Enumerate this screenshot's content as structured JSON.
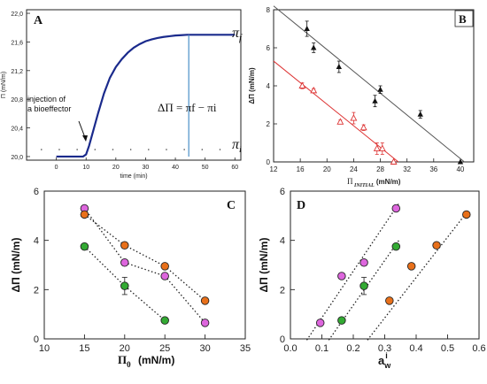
{
  "chart_data": [
    {
      "panel": "A",
      "type": "line",
      "xlabel": "time (min)",
      "ylabel": "Π (mN/m)",
      "xlim": [
        -10,
        62
      ],
      "ylim": [
        19.95,
        22.05
      ],
      "x_ticks": [
        0,
        10,
        20,
        30,
        40,
        50,
        60
      ],
      "y_ticks": [
        "20,0",
        "20,4",
        "20,8",
        "21,2",
        "21,6",
        "22,0"
      ],
      "y_tick_values": [
        20.0,
        20.4,
        20.8,
        21.2,
        21.6,
        22.0
      ],
      "series": [
        {
          "color": "#1a2a8c",
          "x": [
            0,
            5,
            9,
            10,
            11,
            12,
            14,
            16,
            18,
            20,
            22,
            24,
            26,
            28,
            30,
            32,
            34,
            36,
            38,
            40,
            42,
            44,
            46,
            50,
            55,
            60
          ],
          "y": [
            20.0,
            20.0,
            20.0,
            20.03,
            20.15,
            20.3,
            20.6,
            20.88,
            21.1,
            21.25,
            21.36,
            21.45,
            21.52,
            21.57,
            21.61,
            21.635,
            21.655,
            21.67,
            21.68,
            21.69,
            21.695,
            21.7,
            21.7,
            21.7,
            21.7,
            21.7
          ]
        }
      ],
      "vline_x": 44.5,
      "vline_color": "#4a90c8",
      "annotations": {
        "injection": "injection of\na bioeffector",
        "equation": "ΔΠ = π_f − π_i",
        "pi_f": "π_f",
        "pi_i": "π_i"
      }
    },
    {
      "panel": "B",
      "type": "scatter",
      "xlabel": "Π_INITIAL (mN/m)",
      "ylabel": "ΔΠ (mN/m)",
      "xlim": [
        12,
        42
      ],
      "ylim": [
        0,
        8
      ],
      "x_ticks": [
        12,
        16,
        20,
        24,
        28,
        32,
        36,
        40
      ],
      "y_ticks": [
        0,
        2,
        4,
        6,
        8
      ],
      "series": [
        {
          "color": "#111111",
          "marker": "triangle-filled",
          "x": [
            17,
            18,
            21.8,
            27.2,
            28,
            34,
            40
          ],
          "y": [
            7.0,
            6.0,
            5.0,
            3.2,
            3.8,
            2.5,
            0.0
          ],
          "err": [
            0.4,
            0.25,
            0.3,
            0.3,
            0.2,
            0.2,
            0.0
          ],
          "fit": [
            [
              12,
              8.2
            ],
            [
              40.6,
              0.0
            ]
          ],
          "fit_color": "#555555"
        },
        {
          "color": "#dd3333",
          "marker": "triangle-open",
          "x": [
            16.3,
            18,
            22,
            24,
            25.5,
            27.5,
            28.3,
            30
          ],
          "y": [
            4.0,
            3.75,
            2.1,
            2.3,
            1.8,
            0.7,
            0.7,
            0.0
          ],
          "err": [
            0.15,
            0.1,
            0.1,
            0.3,
            0.15,
            0.3,
            0.3,
            0.0
          ],
          "fit": [
            [
              12,
              5.3
            ],
            [
              30.7,
              0.0
            ]
          ],
          "fit_color": "#dd3333"
        }
      ]
    },
    {
      "panel": "C",
      "type": "scatter",
      "xlabel": "Π_0 (mN/m)",
      "ylabel": "ΔΠ (mN/m)",
      "xlim": [
        10,
        35
      ],
      "ylim": [
        0,
        6
      ],
      "x_ticks": [
        10,
        15,
        20,
        25,
        30,
        35
      ],
      "y_ticks": [
        0,
        2,
        4,
        6
      ],
      "series": [
        {
          "color": "#dd66dd",
          "x": [
            15,
            20,
            25,
            30
          ],
          "y": [
            5.3,
            3.1,
            2.55,
            0.65
          ]
        },
        {
          "color": "#e8701a",
          "x": [
            15,
            20,
            25,
            30
          ],
          "y": [
            5.05,
            3.8,
            2.95,
            1.55
          ]
        },
        {
          "color": "#33aa33",
          "x": [
            15,
            20,
            25
          ],
          "y": [
            3.75,
            2.15,
            0.75
          ],
          "err": [
            0,
            0.35,
            0
          ]
        }
      ]
    },
    {
      "panel": "D",
      "type": "scatter",
      "xlabel": "a_w^i",
      "ylabel": "ΔΠ (mN/m)",
      "xlim": [
        0,
        0.6
      ],
      "ylim": [
        0,
        6
      ],
      "x_ticks": [
        0.0,
        0.1,
        0.2,
        0.3,
        0.4,
        0.5,
        0.6
      ],
      "y_ticks": [
        0,
        2,
        4,
        6
      ],
      "series": [
        {
          "color": "#dd66dd",
          "x": [
            0.095,
            0.163,
            0.234,
            0.336
          ],
          "y": [
            0.65,
            2.55,
            3.1,
            5.3
          ],
          "fit": [
            [
              0.052,
              -0.05
            ],
            [
              0.345,
              5.5
            ]
          ]
        },
        {
          "color": "#33aa33",
          "x": [
            0.163,
            0.234,
            0.336
          ],
          "y": [
            0.75,
            2.15,
            3.75
          ],
          "err": [
            0,
            0.35,
            0
          ],
          "fit": [
            [
              0.122,
              -0.05
            ],
            [
              0.345,
              4.0
            ]
          ]
        },
        {
          "color": "#e8701a",
          "x": [
            0.315,
            0.385,
            0.465,
            0.56
          ],
          "y": [
            1.55,
            2.95,
            3.8,
            5.05
          ],
          "fit": [
            [
              0.245,
              -0.05
            ],
            [
              0.565,
              5.2
            ]
          ]
        }
      ]
    }
  ],
  "labels": {
    "panel_a": "A",
    "panel_b": "B",
    "panel_c": "C",
    "panel_d": "D"
  }
}
